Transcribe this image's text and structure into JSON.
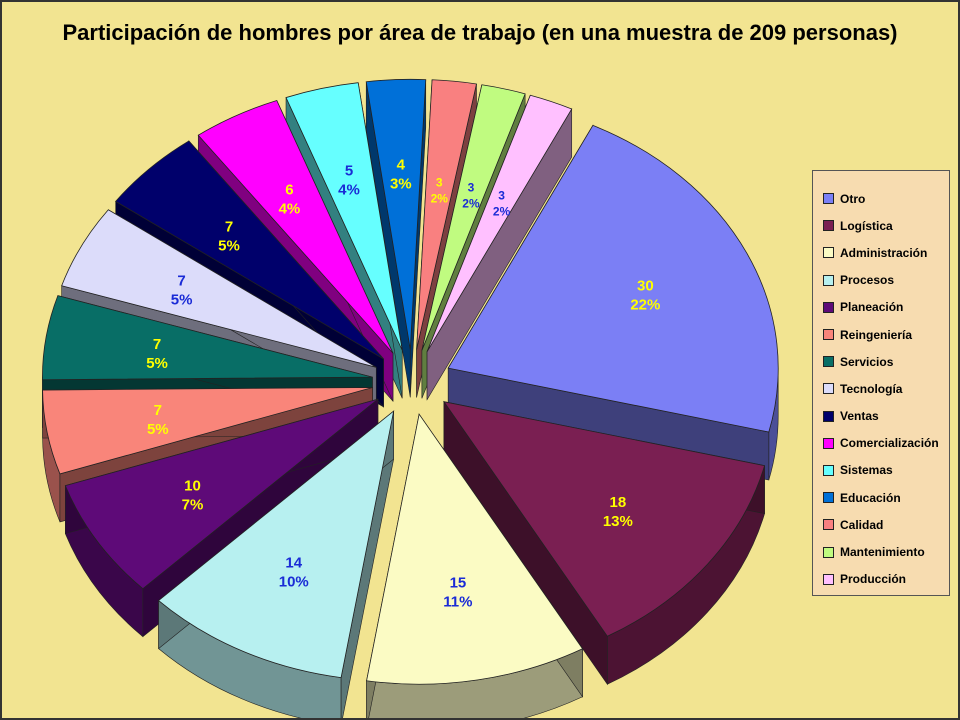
{
  "chart_data": {
    "type": "pie",
    "title": "Participación de hombres por área de trabajo (en una muestra de 209 personas)",
    "legend_position": "right",
    "exploded": true,
    "three_d": true,
    "slices": [
      {
        "name": "Otro",
        "value": 30,
        "percent": "22%",
        "color": "#7b7ff5",
        "label_color": "#ffff00"
      },
      {
        "name": "Logística",
        "value": 18,
        "percent": "13%",
        "color": "#7a1f52",
        "label_color": "#ffff00"
      },
      {
        "name": "Administración",
        "value": 15,
        "percent": "11%",
        "color": "#fbfbc4",
        "label_color": "#1a2bd6"
      },
      {
        "name": "Procesos",
        "value": 14,
        "percent": "10%",
        "color": "#b7f0f0",
        "label_color": "#1a2bd6"
      },
      {
        "name": "Planeación",
        "value": 10,
        "percent": "7%",
        "color": "#5e0a78",
        "label_color": "#ffff00"
      },
      {
        "name": "Reingeniería",
        "value": 7,
        "percent": "5%",
        "color": "#f9857a",
        "label_color": "#ffff00"
      },
      {
        "name": "Servicios",
        "value": 7,
        "percent": "5%",
        "color": "#086e66",
        "label_color": "#ffff00"
      },
      {
        "name": "Tecnología",
        "value": 7,
        "percent": "5%",
        "color": "#dcdcfa",
        "label_color": "#1a2bd6"
      },
      {
        "name": "Ventas",
        "value": 7,
        "percent": "5%",
        "color": "#00006b",
        "label_color": "#ffff00"
      },
      {
        "name": "Comercialización",
        "value": 6,
        "percent": "4%",
        "color": "#ff00ff",
        "label_color": "#ffff00"
      },
      {
        "name": "Sistemas",
        "value": 5,
        "percent": "4%",
        "color": "#66ffff",
        "label_color": "#1a2bd6"
      },
      {
        "name": "Educación",
        "value": 4,
        "percent": "3%",
        "color": "#0070d8",
        "label_color": "#ffff00"
      },
      {
        "name": "Calidad",
        "value": 3,
        "percent": "2%",
        "color": "#f98080",
        "label_color": "#ffff00"
      },
      {
        "name": "Mantenimiento",
        "value": 3,
        "percent": "2%",
        "color": "#c0fb80",
        "label_color": "#1a2bd6"
      },
      {
        "name": "Producción",
        "value": 3,
        "percent": "2%",
        "color": "#ffc0ff",
        "label_color": "#1a2bd6"
      }
    ]
  }
}
